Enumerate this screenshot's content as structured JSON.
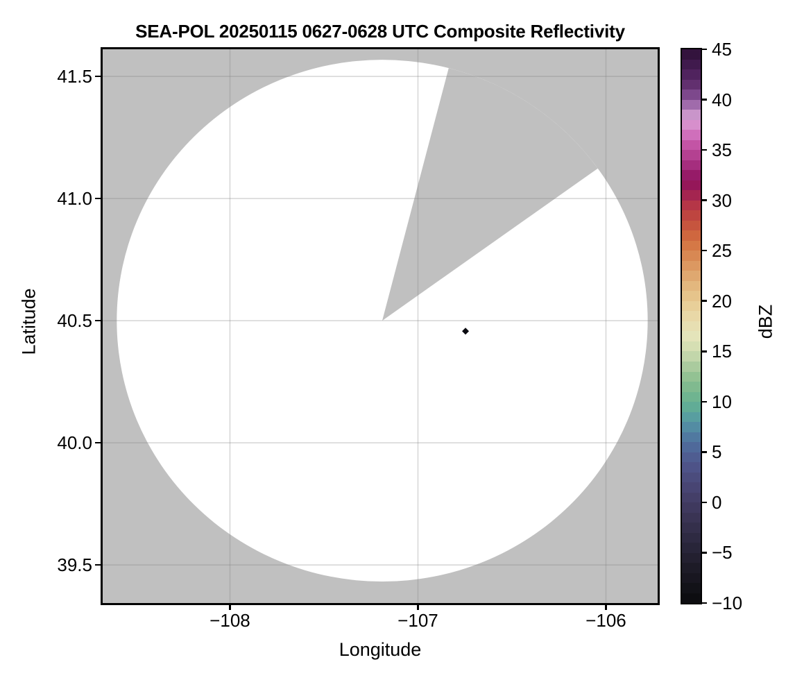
{
  "figure": {
    "title": "SEA-POL 20250115 0627-0628 UTC Composite Reflectivity"
  },
  "chart_data": {
    "type": "radar_ppi_map",
    "title": "SEA-POL 20250115 0627-0628 UTC Composite Reflectivity",
    "xlabel": "Longitude",
    "ylabel": "Latitude",
    "xlim": [
      -108.677,
      -105.725
    ],
    "ylim": [
      39.344,
      41.611
    ],
    "grid": true,
    "x_ticks": {
      "values": [
        -108,
        -107,
        -106
      ],
      "labels": [
        "−108",
        "−107",
        "−106"
      ]
    },
    "y_ticks": {
      "values": [
        41.5,
        41.0,
        40.5,
        40.0,
        39.5
      ],
      "labels": [
        "41.5",
        "41.0",
        "40.5",
        "40.0",
        "39.5"
      ]
    },
    "background_color": "#c0c0c0",
    "scanned_area_color": "#ffffff",
    "gridline_color": "rgba(128,128,128,0.33)",
    "radar": {
      "center_lon": -107.19,
      "center_lat": 40.5,
      "radius_lon_deg": 1.412,
      "radius_lat_deg": 1.068,
      "blocked_sector_azimuth_deg": [
        14.5,
        54.3
      ]
    },
    "echoes": [
      {
        "lon": -106.747,
        "lat": 40.457,
        "approx_dbz": -8,
        "color": "#0a0a10",
        "marker": "diamond"
      }
    ],
    "colorbar": {
      "label": "dBZ",
      "min": -10,
      "max": 45,
      "band_step_dbz": 1,
      "tick_values": [
        45,
        40,
        35,
        30,
        25,
        20,
        15,
        10,
        5,
        0,
        -5,
        -10
      ],
      "tick_labels": [
        "45",
        "40",
        "35",
        "30",
        "25",
        "20",
        "15",
        "10",
        "5",
        "0",
        "−5",
        "−10"
      ],
      "stops": [
        [
          -10,
          "#0a0a0d"
        ],
        [
          -8,
          "#15141c"
        ],
        [
          -6,
          "#201d2b"
        ],
        [
          -4,
          "#2b273d"
        ],
        [
          -2,
          "#37314f"
        ],
        [
          0,
          "#423c63"
        ],
        [
          2,
          "#4a4878"
        ],
        [
          4,
          "#4f578d"
        ],
        [
          6,
          "#4f6f9e"
        ],
        [
          8,
          "#5495a5"
        ],
        [
          9,
          "#5ba79b"
        ],
        [
          10,
          "#66b191"
        ],
        [
          12,
          "#88bd8e"
        ],
        [
          14,
          "#b5cfa3"
        ],
        [
          15,
          "#cfdcb0"
        ],
        [
          16.5,
          "#e4e4ba"
        ],
        [
          18,
          "#e9ddae"
        ],
        [
          20,
          "#e7ca92"
        ],
        [
          22,
          "#e1b077"
        ],
        [
          24,
          "#da9059"
        ],
        [
          26,
          "#d3703f"
        ],
        [
          28,
          "#c24c3d"
        ],
        [
          29.5,
          "#b53647"
        ],
        [
          31,
          "#9c1c55"
        ],
        [
          32,
          "#8e125d"
        ],
        [
          33.5,
          "#a52e7e"
        ],
        [
          35,
          "#bc4a9a"
        ],
        [
          36,
          "#c95eb0"
        ],
        [
          37,
          "#d47fc5"
        ],
        [
          38,
          "#d99fd3"
        ],
        [
          38.7,
          "#c391c7"
        ],
        [
          40,
          "#8a549a"
        ],
        [
          41.5,
          "#62306f"
        ],
        [
          43,
          "#471d55"
        ],
        [
          45,
          "#2c0f35"
        ]
      ]
    }
  }
}
